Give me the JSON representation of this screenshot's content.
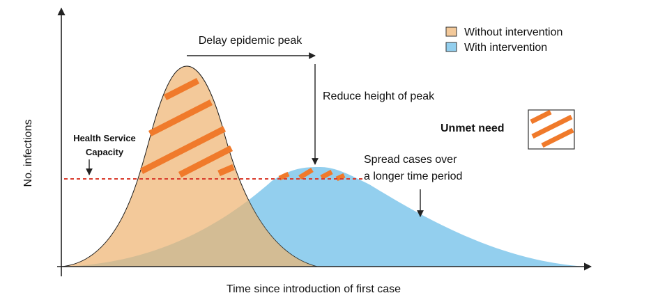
{
  "axes": {
    "y_label": "No. infections",
    "x_label": "Time since introduction of first case"
  },
  "legend": {
    "items": [
      {
        "label": "Without intervention",
        "color": "#f3c99a"
      },
      {
        "label": "With intervention",
        "color": "#93cfee"
      }
    ]
  },
  "annotations": {
    "delay_peak": "Delay epidemic peak",
    "reduce_height": "Reduce height of peak",
    "spread_cases_line1": "Spread cases over",
    "spread_cases_line2": "a longer time period",
    "health_capacity_line1": "Health Service",
    "health_capacity_line2": "Capacity",
    "unmet_need": "Unmet need"
  },
  "colors": {
    "without_fill": "#f3c99a",
    "with_fill": "#93cfee",
    "overlap_fill": "#c9b896",
    "hatch": "#f07a2b",
    "capacity_line": "#d93a2b",
    "axis": "#222222"
  }
}
